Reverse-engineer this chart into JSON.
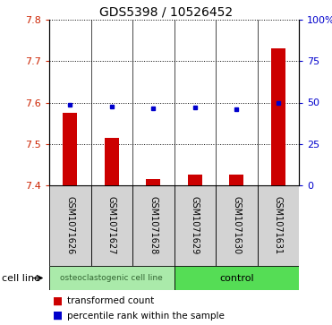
{
  "title": "GDS5398 / 10526452",
  "samples": [
    "GSM1071626",
    "GSM1071627",
    "GSM1071628",
    "GSM1071629",
    "GSM1071630",
    "GSM1071631"
  ],
  "transformed_counts": [
    7.575,
    7.515,
    7.415,
    7.425,
    7.425,
    7.73
  ],
  "percentile_ranks": [
    48.5,
    47.5,
    46.5,
    47.0,
    46.0,
    49.5
  ],
  "ylim_left": [
    7.4,
    7.8
  ],
  "ylim_right": [
    0,
    100
  ],
  "yticks_left": [
    7.4,
    7.5,
    7.6,
    7.7,
    7.8
  ],
  "yticks_right": [
    0,
    25,
    50,
    75,
    100
  ],
  "ytick_labels_right": [
    "0",
    "25",
    "50",
    "75",
    "100%"
  ],
  "bar_color": "#cc0000",
  "dot_color": "#0000cc",
  "bar_width": 0.35,
  "group1_label": "osteoclastogenic cell line",
  "group2_label": "control",
  "group1_color": "#aaeaaa",
  "group2_color": "#55dd55",
  "cell_line_label": "cell line",
  "legend_label1": "transformed count",
  "legend_label2": "percentile rank within the sample",
  "tick_color_left": "#cc2200",
  "tick_color_right": "#0000cc",
  "figwidth": 3.71,
  "figheight": 3.63,
  "dpi": 100
}
